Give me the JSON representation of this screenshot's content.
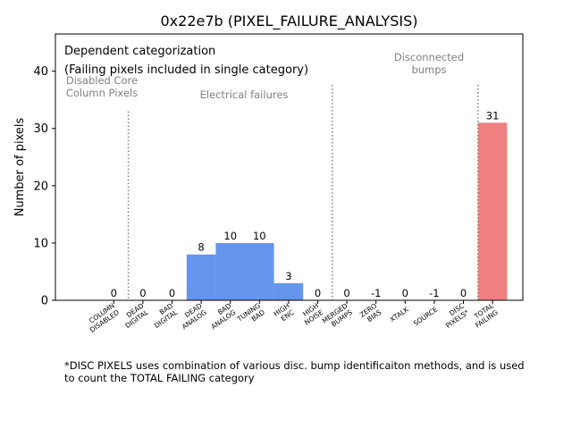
{
  "chart_data": {
    "type": "bar",
    "title": "0x22e7b (PIXEL_FAILURE_ANALYSIS)",
    "ylabel": "Number of pixels",
    "xlabel": "",
    "ylim": [
      0,
      46.5
    ],
    "yticks": [
      0,
      10,
      20,
      30,
      40
    ],
    "grid": false,
    "categories": [
      "COLUMN\nDISABLED",
      "DEAD\nDIGITAL",
      "BAD\nDIGITAL",
      "DEAD\nANALOG",
      "BAD\nANALOG",
      "TUNING\nBAD",
      "HIGH\nENC",
      "HIGH\nNOISE",
      "MERGED\nBUMPS",
      "ZERO\nBIAS",
      "XTALK",
      "SOURCE",
      "DISC\nPIXELS*",
      "TOTAL\nFAILING"
    ],
    "values": [
      0,
      0,
      0,
      8,
      10,
      10,
      3,
      0,
      0,
      -1,
      0,
      -1,
      0,
      31
    ],
    "data_labels": [
      "0",
      "0",
      "0",
      "8",
      "10",
      "10",
      "3",
      "0",
      "0",
      "-1",
      "0",
      "-1",
      "0",
      "31"
    ],
    "colors": {
      "electrical": "#6495ed",
      "total": "#f08080",
      "separator": "#808080",
      "annotation": "#808080"
    },
    "bar_color_index": [
      "none",
      "none",
      "none",
      "electrical",
      "electrical",
      "electrical",
      "electrical",
      "none",
      "none",
      "none",
      "none",
      "none",
      "none",
      "total"
    ],
    "separators_after": [
      0,
      7,
      12
    ],
    "annotations": {
      "heading_line1": "Dependent categorization",
      "heading_line2": "(Failing pixels included in single category)",
      "group_disabled": "Disabled Core\nColumn Pixels",
      "group_electrical": "Electrical failures",
      "group_disconnected": "Disconnected\nbumps"
    }
  },
  "footnote": "*DISC PIXELS uses combination of various disc. bump identificaiton methods, and is used\nto count the TOTAL FAILING category"
}
